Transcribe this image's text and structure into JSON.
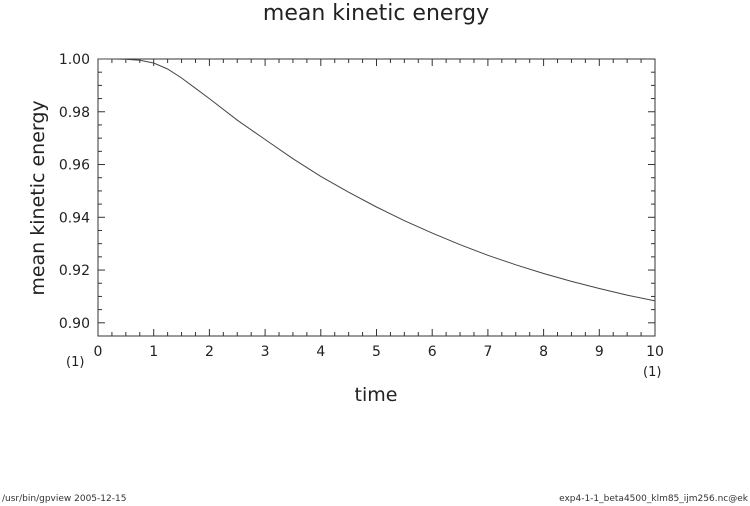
{
  "chart_data": {
    "type": "line",
    "title": "mean kinetic energy",
    "xlabel": "time",
    "ylabel": "mean kinetic energy",
    "xlim": [
      0,
      10
    ],
    "ylim": [
      0.895,
      1.0
    ],
    "x_ticks": [
      "0",
      "1",
      "2",
      "3",
      "4",
      "5",
      "6",
      "7",
      "8",
      "9",
      "10"
    ],
    "y_ticks": [
      "0.90",
      "0.92",
      "0.94",
      "0.96",
      "0.98",
      "1.00"
    ],
    "x_unit_label_left": "(1)",
    "x_unit_label_right": "(1)",
    "grid": false,
    "series": [
      {
        "x": [
          0,
          0.25,
          0.5,
          0.75,
          1.0,
          1.25,
          1.5,
          1.75,
          2.0,
          2.5,
          3.0,
          3.5,
          4.0,
          4.5,
          5.0,
          5.5,
          6.0,
          6.5,
          7.0,
          7.5,
          8.0,
          8.5,
          9.0,
          9.5,
          10.0
        ],
        "values": [
          1.0,
          1.0,
          0.9999,
          0.9995,
          0.9985,
          0.9962,
          0.9928,
          0.9889,
          0.985,
          0.9768,
          0.9695,
          0.9622,
          0.9555,
          0.9495,
          0.9439,
          0.9387,
          0.934,
          0.9296,
          0.9256,
          0.922,
          0.9187,
          0.9157,
          0.913,
          0.9105,
          0.9083
        ]
      }
    ]
  },
  "footer": {
    "left": "/usr/bin/gpview  2005-12-15",
    "right": "exp4-1-1_beta4500_klm85_ijm256.nc@ek"
  }
}
